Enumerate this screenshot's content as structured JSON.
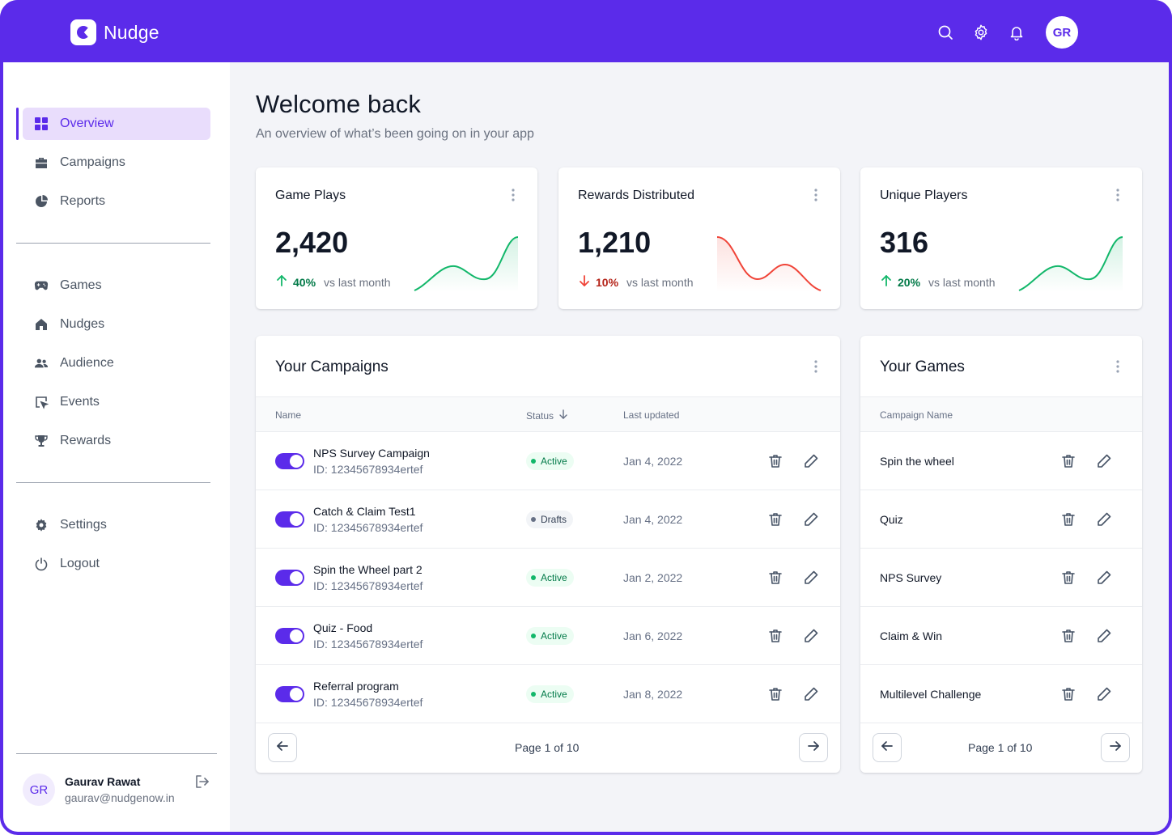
{
  "app": {
    "name": "Nudge",
    "brand_color": "#5b2bea"
  },
  "topbar": {
    "icons": [
      "search-icon",
      "gear-icon",
      "bell-icon"
    ],
    "avatar_initials": "GR"
  },
  "sidebar": {
    "primary": [
      {
        "label": "Overview",
        "icon": "grid-icon",
        "active": true
      },
      {
        "label": "Campaigns",
        "icon": "briefcase-icon",
        "active": false
      },
      {
        "label": "Reports",
        "icon": "pie-chart-icon",
        "active": false
      }
    ],
    "secondary": [
      {
        "label": "Games",
        "icon": "gamepad-icon"
      },
      {
        "label": "Nudges",
        "icon": "home-icon"
      },
      {
        "label": "Audience",
        "icon": "users-icon"
      },
      {
        "label": "Events",
        "icon": "cursor-icon"
      },
      {
        "label": "Rewards",
        "icon": "trophy-icon"
      }
    ],
    "tertiary": [
      {
        "label": "Settings",
        "icon": "gear-icon"
      },
      {
        "label": "Logout",
        "icon": "power-icon"
      }
    ],
    "user": {
      "initials": "GR",
      "name": "Gaurav Rawat",
      "email": "gaurav@nudgenow.in"
    }
  },
  "header": {
    "title": "Welcome back",
    "subtitle": "An overview of what’s been going on in your app"
  },
  "stats": [
    {
      "title": "Game Plays",
      "value": "2,420",
      "direction": "up",
      "change": "40%",
      "period": "vs last month",
      "color": "#12b76a"
    },
    {
      "title": "Rewards Distributed",
      "value": "1,210",
      "direction": "down",
      "change": "10%",
      "period": "vs last month",
      "color": "#f04438"
    },
    {
      "title": "Unique Players",
      "value": "316",
      "direction": "up",
      "change": "20%",
      "period": "vs last month",
      "color": "#12b76a"
    }
  ],
  "campaigns": {
    "title": "Your Campaigns",
    "columns": {
      "name": "Name",
      "status": "Status",
      "updated": "Last updated"
    },
    "rows": [
      {
        "name": "NPS Survey Campaign",
        "id": "ID: 12345678934ertef",
        "status": "Active",
        "status_kind": "active",
        "updated": "Jan 4, 2022",
        "enabled": true
      },
      {
        "name": "Catch & Claim Test1",
        "id": "ID: 12345678934ertef",
        "status": "Drafts",
        "status_kind": "draft",
        "updated": "Jan 4, 2022",
        "enabled": true
      },
      {
        "name": "Spin the Wheel part 2",
        "id": "ID: 12345678934ertef",
        "status": "Active",
        "status_kind": "active",
        "updated": "Jan 2, 2022",
        "enabled": true
      },
      {
        "name": "Quiz - Food",
        "id": "ID: 12345678934ertef",
        "status": "Active",
        "status_kind": "active",
        "updated": "Jan 6, 2022",
        "enabled": true
      },
      {
        "name": "Referral program",
        "id": "ID: 12345678934ertef",
        "status": "Active",
        "status_kind": "active",
        "updated": "Jan 8, 2022",
        "enabled": true
      }
    ],
    "pagination": {
      "label": "Page 1 of 10"
    }
  },
  "games": {
    "title": "Your Games",
    "column": "Campaign Name",
    "rows": [
      {
        "name": "Spin the wheel"
      },
      {
        "name": "Quiz"
      },
      {
        "name": "NPS Survey"
      },
      {
        "name": "Claim & Win"
      },
      {
        "name": "Multilevel Challenge"
      }
    ],
    "pagination": {
      "label": "Page 1 of 10"
    }
  }
}
